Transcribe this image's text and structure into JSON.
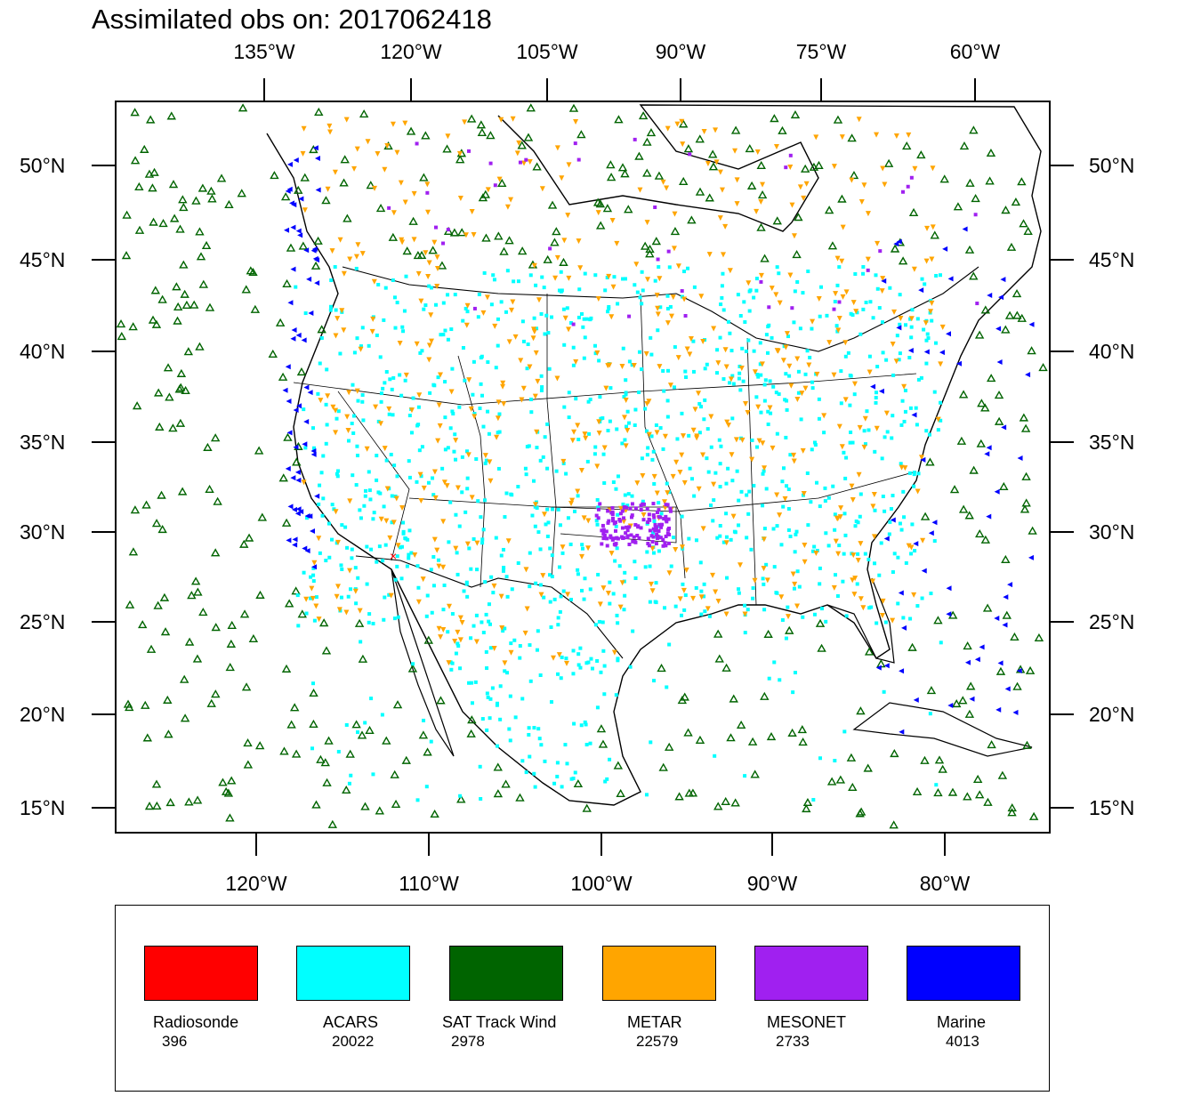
{
  "title": "Assimilated obs on: 2017062418",
  "axes": {
    "top_ticks": [
      "135°W",
      "120°W",
      "105°W",
      "90°W",
      "75°W",
      "60°W"
    ],
    "bottom_ticks": [
      "120°W",
      "110°W",
      "100°W",
      "90°W",
      "80°W"
    ],
    "lat_ticks": [
      "50°N",
      "45°N",
      "40°N",
      "35°N",
      "30°N",
      "25°N",
      "20°N",
      "15°N"
    ]
  },
  "legend": [
    {
      "key": "radiosonde",
      "name": "Radiosonde",
      "count": "396",
      "color": "#ff0000"
    },
    {
      "key": "acars",
      "name": "ACARS",
      "count": "20022",
      "color": "#00ffff"
    },
    {
      "key": "sat",
      "name": "SAT Track Wind",
      "count": "2978",
      "color": "#006400"
    },
    {
      "key": "metar",
      "name": "METAR",
      "count": "22579",
      "color": "#ffa500"
    },
    {
      "key": "mesonet",
      "name": "MESONET",
      "count": "2733",
      "color": "#a020f0"
    },
    {
      "key": "marine",
      "name": "Marine",
      "count": "4013",
      "color": "#0000ff"
    }
  ],
  "chart_data": {
    "type": "scatter",
    "title": "Assimilated obs on: 2017062418",
    "xlim_lon": [
      -128,
      -74
    ],
    "ylim_lat": [
      14,
      53.5
    ],
    "series": [
      {
        "name": "Radiosonde",
        "count": 396
      },
      {
        "name": "ACARS",
        "count": 20022
      },
      {
        "name": "SAT Track Wind",
        "count": 2978
      },
      {
        "name": "METAR",
        "count": 22579
      },
      {
        "name": "MESONET",
        "count": 2733
      },
      {
        "name": "Marine",
        "count": 4013
      }
    ]
  }
}
